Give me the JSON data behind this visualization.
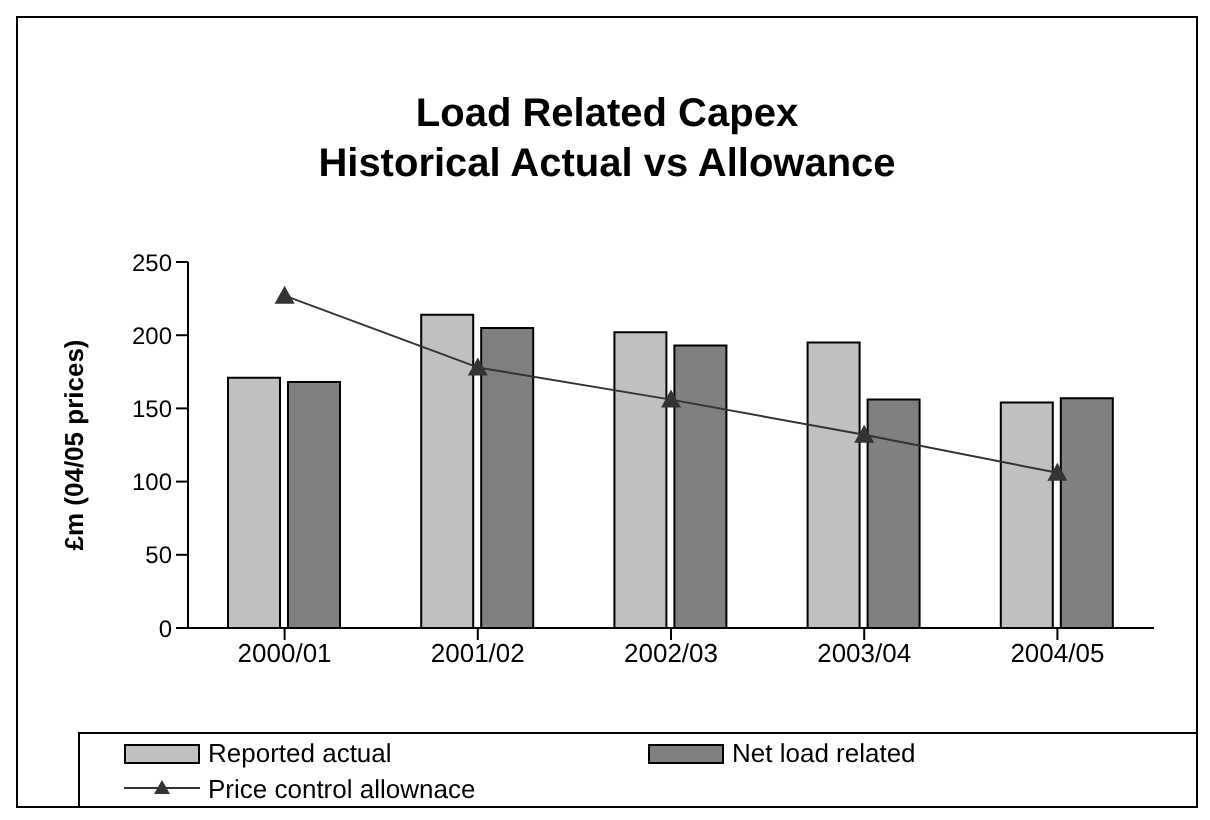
{
  "chart_data": {
    "type": "bar",
    "title": "Load Related Capex\nHistorical Actual vs Allowance",
    "ylabel": "£m (04/05 prices)",
    "categories": [
      "2000/01",
      "2001/02",
      "2002/03",
      "2003/04",
      "2004/05"
    ],
    "series": [
      {
        "name": "Reported actual",
        "color": "#c0c0c0",
        "values": [
          171,
          214,
          202,
          195,
          154
        ]
      },
      {
        "name": "Net load related",
        "color": "#808080",
        "values": [
          168,
          205,
          193,
          156,
          157
        ]
      },
      {
        "name": "Price control allownace",
        "type": "line",
        "color": "#333333",
        "marker": "triangle",
        "values": [
          227,
          178,
          156,
          132,
          106
        ]
      }
    ],
    "ylim": [
      0,
      250
    ],
    "yticks": [
      0,
      50,
      100,
      150,
      200,
      250
    ],
    "legend": "bottom"
  }
}
